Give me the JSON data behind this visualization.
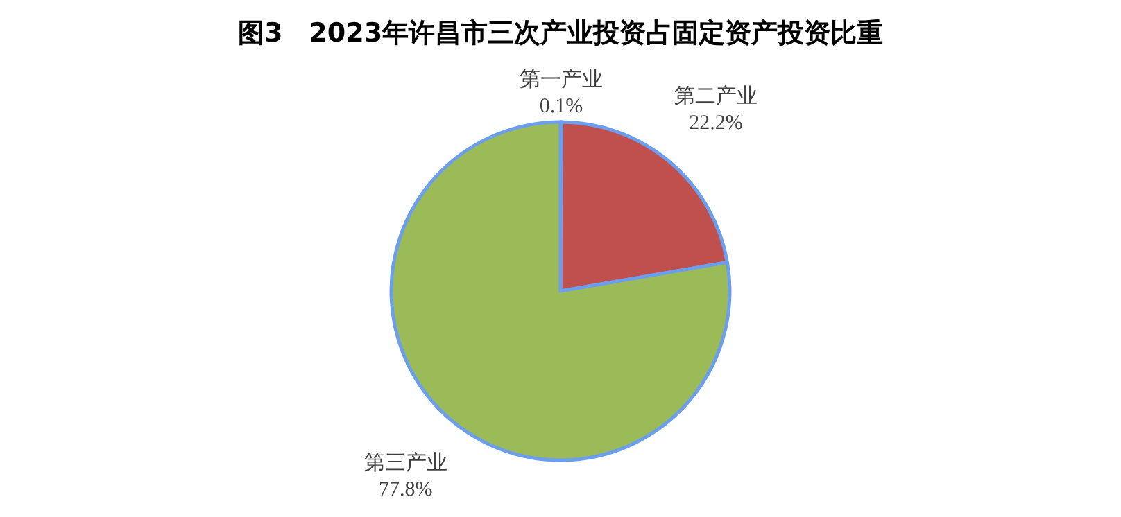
{
  "chart_data": {
    "type": "pie",
    "title": "图3　2023年许昌市三次产业投资占固定资产投资比重",
    "categories": [
      "第一产业",
      "第二产业",
      "第三产业"
    ],
    "values": [
      0.1,
      22.2,
      77.8
    ],
    "colors": [
      "#4f81bd",
      "#c0504d",
      "#9bbb59"
    ],
    "value_labels": [
      "0.1%",
      "22.2%",
      "77.8%"
    ]
  }
}
